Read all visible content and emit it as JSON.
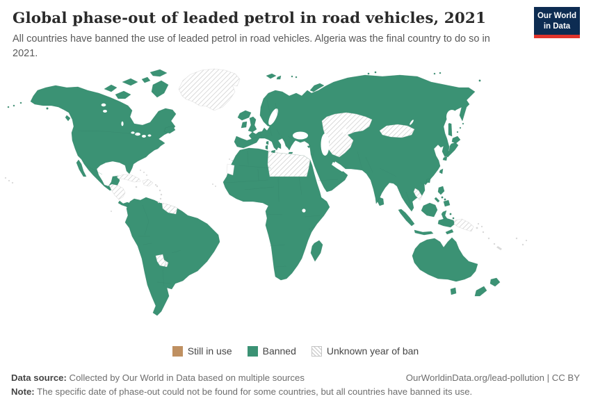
{
  "header": {
    "title": "Global phase-out of leaded petrol in road vehicles, 2021",
    "subtitle": "All countries have banned the use of leaded petrol in road vehicles. Algeria was the final country to do so in 2021.",
    "logo": {
      "line1": "Our World",
      "line2": "in Data",
      "bg": "#0d2c52",
      "accent": "#e0342c"
    }
  },
  "legend": {
    "items": [
      {
        "id": "still-in-use",
        "label": "Still in use",
        "style": "solid",
        "color": "#bf9061"
      },
      {
        "id": "banned",
        "label": "Banned",
        "style": "solid",
        "color": "#3b9274"
      },
      {
        "id": "unknown",
        "label": "Unknown year of ban",
        "style": "hatched",
        "color": "#d0d0d0"
      }
    ]
  },
  "footer": {
    "source_label": "Data source:",
    "source_text": " Collected by Our World in Data based on multiple sources",
    "link": "OurWorldinData.org/lead-pollution | CC BY",
    "note_label": "Note:",
    "note_text": " The specific date of phase-out could not be found for some countries, but all countries have banned its use."
  },
  "map": {
    "ocean": "#ffffff",
    "country_border": "#2e7b62",
    "hatch_line": "#d0d0d0",
    "hatch_border": "#c4c4c4",
    "island_fill": "#d9d9d9"
  },
  "chart_data": {
    "type": "choropleth",
    "title": "Global phase-out of leaded petrol in road vehicles, 2021",
    "year": 2021,
    "categories": [
      "Still in use",
      "Banned",
      "Unknown year of ban"
    ],
    "category_counts_note": "No country remains in the 'Still in use' category; all countries have banned leaded petrol.",
    "unknown_year_areas": [
      "Greenland",
      "Cuba",
      "Haiti and Dominican Republic",
      "Honduras and Nicaragua",
      "Guyana and Suriname",
      "Paraguay",
      "Libya",
      "Egypt",
      "Kazakhstan",
      "Uzbekistan",
      "Turkmenistan",
      "Mongolia",
      "Laos",
      "Papua New Guinea"
    ],
    "regions": {
      "north-america": "banned",
      "arctic-banks": "banned",
      "arctic-victoria": "banned",
      "arctic-parry": "banned",
      "arctic-devon": "banned",
      "arctic-ellesmere": "banned",
      "arctic-baffin": "banned",
      "newfoundland": "banned",
      "vancouver-island": "banned",
      "baja-california": "banned",
      "costa-rica-panama": "banned",
      "south-america": "banned",
      "iceland": "banned",
      "great-britain": "banned",
      "ireland": "banned",
      "svalbard-1": "banned",
      "svalbard-2": "banned",
      "novaya-zemlya": "banned",
      "eurasia": "banned",
      "africa": "banned",
      "madagascar": "banned",
      "sri-lanka": "banned",
      "taiwan": "banned",
      "hainan": "banned",
      "japan-hokkaido": "banned",
      "japan-honshu": "banned",
      "japan-kyushu": "banned",
      "sakhalin": "banned",
      "philippines-luzon": "banned",
      "philippines-mindanao": "banned",
      "philippines-palawan": "banned",
      "borneo": "banned",
      "sumatra": "banned",
      "java": "banned",
      "sulawesi": "banned",
      "timor": "banned",
      "west-papua": "banned",
      "australia": "banned",
      "tasmania": "banned",
      "new-zealand-north": "banned",
      "new-zealand-south": "banned",
      "sicily": "banned",
      "sardinia": "banned",
      "corsica": "banned",
      "crete": "banned",
      "cyprus": "banned",
      "minor-islands-banned": "banned",
      "greenland": "unknown",
      "cuba": "unknown",
      "hispaniola": "unknown",
      "honduras-nicaragua": "unknown",
      "guyana-suriname": "unknown",
      "paraguay": "unknown",
      "libya-egypt": "unknown",
      "kazakhstan-uzbekistan-turkmenistan": "unknown",
      "mongolia": "unknown",
      "laos": "unknown",
      "papua-new-guinea": "unknown",
      "minor-islands": "island"
    }
  }
}
